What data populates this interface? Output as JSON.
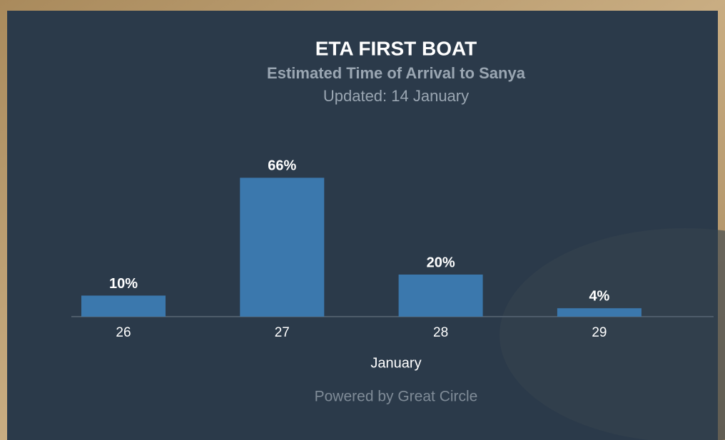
{
  "chart_data": {
    "type": "bar",
    "title": "ETA FIRST BOAT",
    "subtitle": "Estimated Time of Arrival to Sanya",
    "updated": "Updated: 14 January",
    "categories": [
      "26",
      "27",
      "28",
      "29"
    ],
    "values": [
      10,
      66,
      20,
      4
    ],
    "value_labels": [
      "10%",
      "66%",
      "20%",
      "4%"
    ],
    "color": "#3b78ad",
    "x_label": "January",
    "footer": "Powered by Great Circle"
  }
}
